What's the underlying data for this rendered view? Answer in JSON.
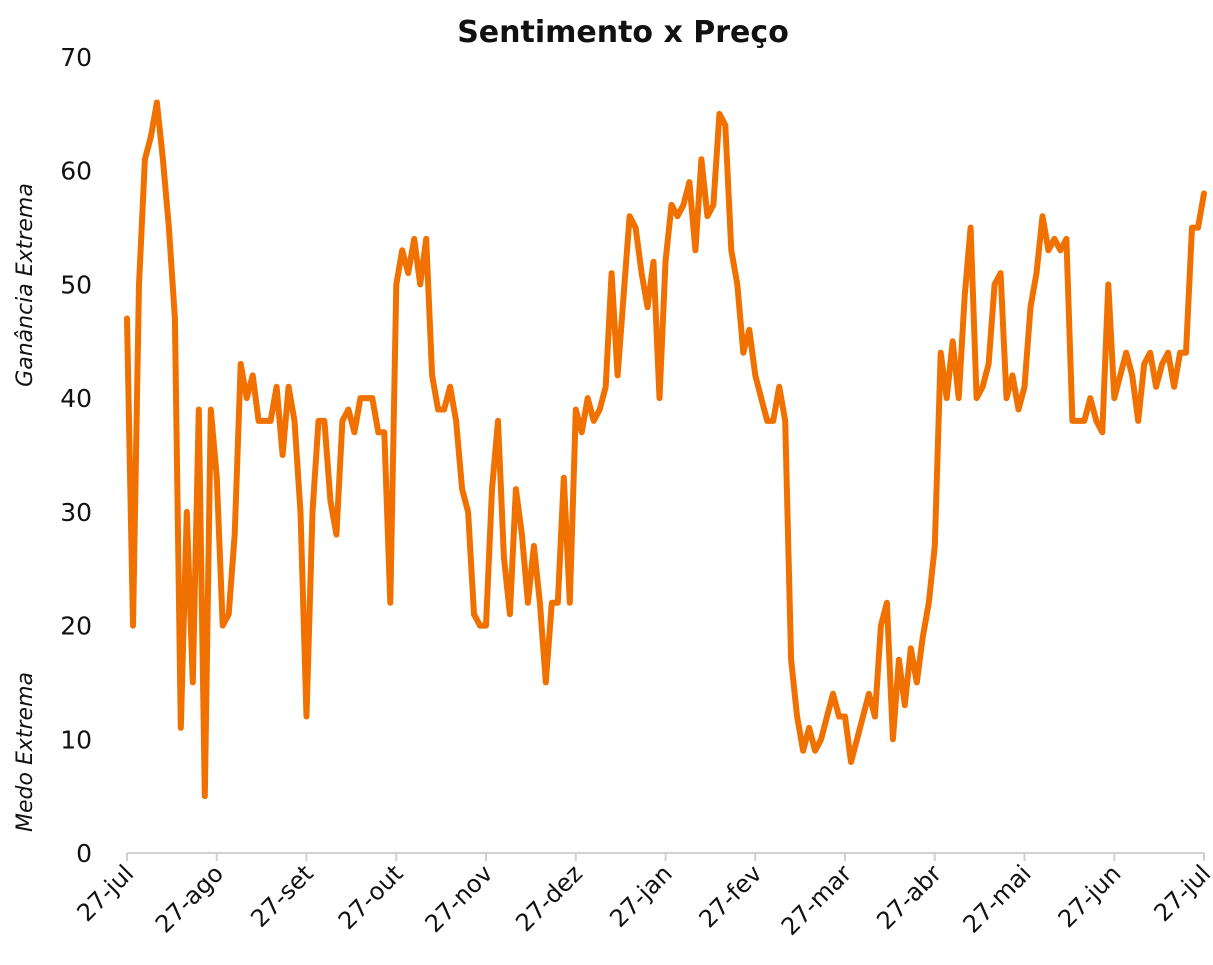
{
  "chart_data": {
    "type": "line",
    "title": "Sentimento x Preço",
    "annotations": [
      "Ganância Extrema",
      "Medo Extrema"
    ],
    "categories": [
      "27-jul",
      null,
      null,
      null,
      null,
      null,
      null,
      null,
      null,
      null,
      null,
      null,
      null,
      null,
      null,
      "27-ago",
      null,
      null,
      null,
      null,
      null,
      null,
      null,
      null,
      null,
      null,
      null,
      null,
      null,
      null,
      "27-set",
      null,
      null,
      null,
      null,
      null,
      null,
      null,
      null,
      null,
      null,
      null,
      null,
      null,
      null,
      "27-out",
      null,
      null,
      null,
      null,
      null,
      null,
      null,
      null,
      null,
      null,
      null,
      null,
      null,
      null,
      "27-nov",
      null,
      null,
      null,
      null,
      null,
      null,
      null,
      null,
      null,
      null,
      null,
      null,
      null,
      null,
      "27-dez",
      null,
      null,
      null,
      null,
      null,
      null,
      null,
      null,
      null,
      null,
      null,
      null,
      null,
      null,
      "27-jan",
      null,
      null,
      null,
      null,
      null,
      null,
      null,
      null,
      null,
      null,
      null,
      null,
      null,
      null,
      "27-fev",
      null,
      null,
      null,
      null,
      null,
      null,
      null,
      null,
      null,
      null,
      null,
      null,
      null,
      null,
      "27-mar",
      null,
      null,
      null,
      null,
      null,
      null,
      null,
      null,
      null,
      null,
      null,
      null,
      null,
      null,
      "27-abr",
      null,
      null,
      null,
      null,
      null,
      null,
      null,
      null,
      null,
      null,
      null,
      null,
      null,
      null,
      "27-mai",
      null,
      null,
      null,
      null,
      null,
      null,
      null,
      null,
      null,
      null,
      null,
      null,
      null,
      null,
      "27-jun",
      null,
      null,
      null,
      null,
      null,
      null,
      null,
      null,
      null,
      null,
      null,
      null,
      null,
      null,
      "27-jul"
    ],
    "values": [
      47,
      20,
      50,
      61,
      63,
      66,
      61,
      55,
      47,
      11,
      30,
      15,
      39,
      5,
      39,
      33,
      20,
      21,
      28,
      43,
      40,
      42,
      38,
      38,
      38,
      41,
      35,
      41,
      38,
      30,
      12,
      30,
      38,
      38,
      31,
      28,
      38,
      39,
      37,
      40,
      40,
      40,
      37,
      37,
      22,
      50,
      53,
      51,
      54,
      50,
      54,
      42,
      39,
      39,
      41,
      38,
      32,
      30,
      21,
      20,
      20,
      32,
      38,
      26,
      21,
      32,
      28,
      22,
      27,
      22,
      15,
      22,
      22,
      33,
      22,
      39,
      37,
      40,
      38,
      39,
      41,
      51,
      42,
      49,
      56,
      55,
      51,
      48,
      52,
      40,
      52,
      57,
      56,
      57,
      59,
      53,
      61,
      56,
      57,
      65,
      64,
      53,
      50,
      44,
      46,
      42,
      40,
      38,
      38,
      41,
      38,
      17,
      12,
      9,
      11,
      9,
      10,
      12,
      14,
      12,
      12,
      8,
      10,
      12,
      14,
      12,
      20,
      22,
      10,
      17,
      13,
      18,
      15,
      19,
      22,
      27,
      44,
      40,
      45,
      40,
      49,
      55,
      40,
      41,
      43,
      50,
      51,
      40,
      42,
      39,
      41,
      48,
      51,
      56,
      53,
      54,
      53,
      54,
      38,
      38,
      38,
      40,
      38,
      37,
      50,
      40,
      42,
      44,
      42,
      38,
      43,
      44,
      41,
      43,
      44,
      41,
      44,
      44,
      55,
      55,
      58
    ],
    "color": "#f07000",
    "ylim": [
      0,
      70
    ],
    "yticks": [
      0,
      10,
      20,
      30,
      40,
      50,
      60,
      70
    ]
  }
}
